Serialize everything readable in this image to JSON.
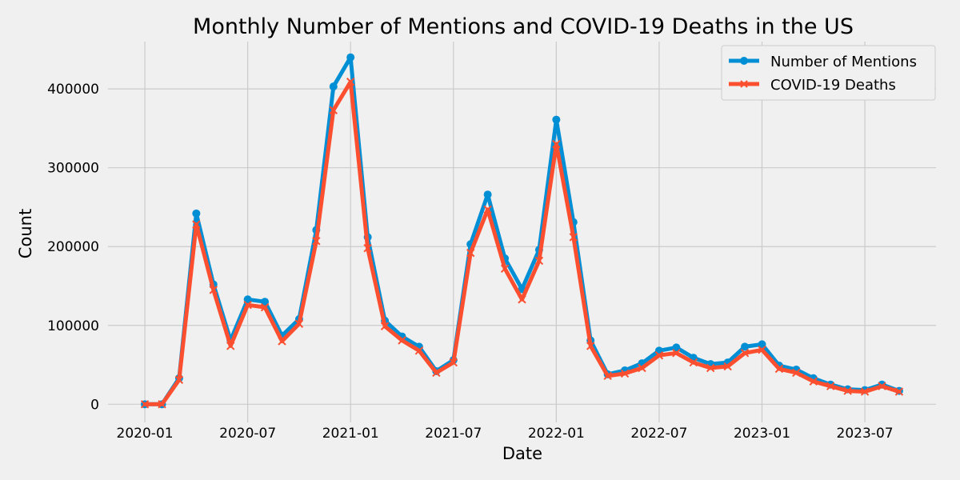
{
  "chart_data": {
    "type": "line",
    "title": "Monthly Number of Mentions and COVID-19 Deaths in the US",
    "xlabel": "Date",
    "ylabel": "Count",
    "x": [
      "2020-01",
      "2020-02",
      "2020-03",
      "2020-04",
      "2020-05",
      "2020-06",
      "2020-07",
      "2020-08",
      "2020-09",
      "2020-10",
      "2020-11",
      "2020-12",
      "2021-01",
      "2021-02",
      "2021-03",
      "2021-04",
      "2021-05",
      "2021-06",
      "2021-07",
      "2021-08",
      "2021-09",
      "2021-10",
      "2021-11",
      "2021-12",
      "2022-01",
      "2022-02",
      "2022-03",
      "2022-04",
      "2022-05",
      "2022-06",
      "2022-07",
      "2022-08",
      "2022-09",
      "2022-10",
      "2022-11",
      "2022-12",
      "2023-01",
      "2023-02",
      "2023-03",
      "2023-04",
      "2023-05",
      "2023-06",
      "2023-07",
      "2023-08",
      "2023-09"
    ],
    "series": [
      {
        "name": "Number of Mentions",
        "color": "#008fd5",
        "marker": "circle",
        "values": [
          0,
          0,
          33000,
          242000,
          152000,
          81000,
          133000,
          130000,
          87000,
          108000,
          221000,
          403000,
          440000,
          212000,
          106000,
          86000,
          73000,
          42000,
          56000,
          203000,
          266000,
          185000,
          146000,
          196000,
          361000,
          231000,
          81000,
          38000,
          43000,
          52000,
          68000,
          72000,
          59000,
          51000,
          53000,
          73000,
          76000,
          49000,
          44000,
          33000,
          25000,
          19000,
          18000,
          25000,
          17000
        ]
      },
      {
        "name": "COVID-19 Deaths",
        "color": "#fc4f30",
        "marker": "x",
        "values": [
          0,
          0,
          31000,
          228000,
          145000,
          74000,
          126000,
          123000,
          80000,
          102000,
          207000,
          373000,
          409000,
          198000,
          99000,
          81000,
          68000,
          40000,
          53000,
          192000,
          247000,
          172000,
          133000,
          182000,
          330000,
          212000,
          74000,
          36000,
          39000,
          46000,
          62000,
          65000,
          53000,
          46000,
          48000,
          65000,
          69000,
          45000,
          40000,
          29000,
          23000,
          17000,
          16000,
          23000,
          16000
        ]
      }
    ],
    "ylim": [
      -23000,
      460000
    ],
    "yticks": [
      0,
      100000,
      200000,
      300000,
      400000
    ],
    "ytick_labels": [
      "0",
      "100000",
      "200000",
      "300000",
      "400000"
    ],
    "xticks": [
      "2020-01",
      "2020-07",
      "2021-01",
      "2021-07",
      "2022-01",
      "2022-07",
      "2023-01",
      "2023-07"
    ],
    "xtick_labels": [
      "2020-01",
      "2020-07",
      "2021-01",
      "2021-07",
      "2022-01",
      "2022-07",
      "2023-01",
      "2023-07"
    ],
    "grid": true,
    "legend_position": "top-right"
  }
}
